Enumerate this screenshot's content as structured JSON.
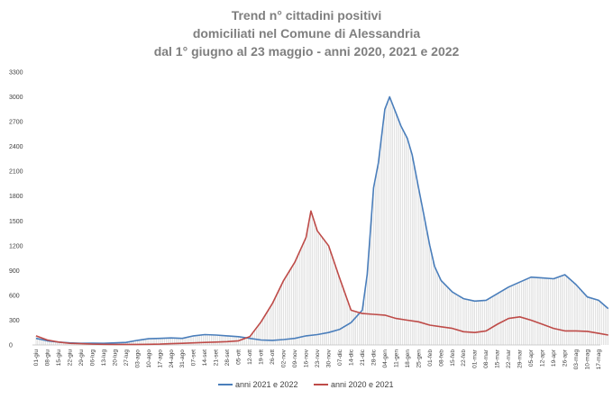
{
  "title_lines": [
    "Trend n° cittadini positivi",
    "domiciliati nel Comune di Alessandria",
    "dal 1° giugno al 23 maggio - anni 2020, 2021 e 2022"
  ],
  "colors": {
    "series_2021_2022": "#4a7ebb",
    "series_2020_2021": "#be4b48",
    "title": "#7f7f7f",
    "axis_text": "#404040",
    "drop_lines": "#bfbfbf"
  },
  "chart_data": {
    "type": "line",
    "title": "Trend n° cittadini positivi domiciliati nel Comune di Alessandria dal 1° giugno al 23 maggio - anni 2020, 2021 e 2022",
    "xlabel": "",
    "ylabel": "",
    "ylim": [
      0,
      3300
    ],
    "y_ticks": [
      0,
      300,
      600,
      900,
      1200,
      1500,
      1800,
      2100,
      2400,
      2700,
      3000,
      3300
    ],
    "x_tick_labels": [
      "01-giu",
      "08-giu",
      "15-giu",
      "22-giu",
      "29-giu",
      "06-lug",
      "13-lug",
      "20-lug",
      "27-lug",
      "03-ago",
      "10-ago",
      "17-ago",
      "24-ago",
      "31-ago",
      "07-set",
      "14-set",
      "21-set",
      "28-set",
      "05-ott",
      "12-ott",
      "19-ott",
      "26-ott",
      "02-nov",
      "09-nov",
      "16-nov",
      "23-nov",
      "30-nov",
      "07-dic",
      "14-dic",
      "21-dic",
      "28-dic",
      "04-gen",
      "11-gen",
      "18-gen",
      "25-gen",
      "01-feb",
      "08-feb",
      "15-feb",
      "22-feb",
      "01-mar",
      "08-mar",
      "15-mar",
      "22-mar",
      "29-mar",
      "05-apr",
      "12-apr",
      "19-apr",
      "26-apr",
      "03-mag",
      "10-mag",
      "17-mag"
    ],
    "grid": false,
    "legend_position": "bottom",
    "series": [
      {
        "name": "anni 2021 e 2022",
        "color": "#4a7ebb",
        "points": [
          [
            "01-giu",
            80
          ],
          [
            "08-giu",
            50
          ],
          [
            "15-giu",
            35
          ],
          [
            "22-giu",
            25
          ],
          [
            "29-giu",
            20
          ],
          [
            "06-lug",
            22
          ],
          [
            "13-lug",
            20
          ],
          [
            "20-lug",
            25
          ],
          [
            "27-lug",
            30
          ],
          [
            "03-ago",
            55
          ],
          [
            "10-ago",
            75
          ],
          [
            "17-ago",
            80
          ],
          [
            "24-ago",
            85
          ],
          [
            "31-ago",
            80
          ],
          [
            "07-set",
            110
          ],
          [
            "14-set",
            125
          ],
          [
            "21-set",
            120
          ],
          [
            "28-set",
            110
          ],
          [
            "05-ott",
            100
          ],
          [
            "12-ott",
            80
          ],
          [
            "19-ott",
            60
          ],
          [
            "26-ott",
            55
          ],
          [
            "02-nov",
            65
          ],
          [
            "09-nov",
            80
          ],
          [
            "16-nov",
            110
          ],
          [
            "23-nov",
            125
          ],
          [
            "30-nov",
            150
          ],
          [
            "07-dic",
            190
          ],
          [
            "14-dic",
            270
          ],
          [
            "21-dic",
            420
          ],
          [
            "24-dic",
            850
          ],
          [
            "28-dic",
            1900
          ],
          [
            "31-dic",
            2200
          ],
          [
            "04-gen",
            2850
          ],
          [
            "07-gen",
            3000
          ],
          [
            "11-gen",
            2800
          ],
          [
            "14-gen",
            2650
          ],
          [
            "18-gen",
            2500
          ],
          [
            "21-gen",
            2300
          ],
          [
            "25-gen",
            1900
          ],
          [
            "28-gen",
            1600
          ],
          [
            "01-feb",
            1200
          ],
          [
            "04-feb",
            950
          ],
          [
            "08-feb",
            780
          ],
          [
            "15-feb",
            640
          ],
          [
            "22-feb",
            560
          ],
          [
            "01-mar",
            530
          ],
          [
            "08-mar",
            540
          ],
          [
            "15-mar",
            620
          ],
          [
            "22-mar",
            700
          ],
          [
            "29-mar",
            760
          ],
          [
            "05-apr",
            820
          ],
          [
            "12-apr",
            810
          ],
          [
            "19-apr",
            800
          ],
          [
            "26-apr",
            850
          ],
          [
            "03-mag",
            730
          ],
          [
            "10-mag",
            580
          ],
          [
            "17-mag",
            540
          ],
          [
            "23-mag",
            440
          ]
        ]
      },
      {
        "name": "anni 2020 e 2021",
        "color": "#be4b48",
        "points": [
          [
            "01-giu",
            110
          ],
          [
            "08-giu",
            60
          ],
          [
            "15-giu",
            35
          ],
          [
            "22-giu",
            20
          ],
          [
            "29-giu",
            15
          ],
          [
            "06-lug",
            10
          ],
          [
            "13-lug",
            8
          ],
          [
            "20-lug",
            6
          ],
          [
            "27-lug",
            6
          ],
          [
            "03-ago",
            7
          ],
          [
            "10-ago",
            8
          ],
          [
            "17-ago",
            10
          ],
          [
            "24-ago",
            15
          ],
          [
            "31-ago",
            20
          ],
          [
            "07-set",
            25
          ],
          [
            "14-set",
            30
          ],
          [
            "21-set",
            35
          ],
          [
            "28-set",
            40
          ],
          [
            "05-ott",
            50
          ],
          [
            "12-ott",
            100
          ],
          [
            "19-ott",
            280
          ],
          [
            "26-ott",
            500
          ],
          [
            "02-nov",
            780
          ],
          [
            "09-nov",
            1000
          ],
          [
            "16-nov",
            1300
          ],
          [
            "19-nov",
            1620
          ],
          [
            "23-nov",
            1380
          ],
          [
            "30-nov",
            1200
          ],
          [
            "07-dic",
            800
          ],
          [
            "14-dic",
            420
          ],
          [
            "21-dic",
            380
          ],
          [
            "28-dic",
            370
          ],
          [
            "04-gen",
            360
          ],
          [
            "11-gen",
            320
          ],
          [
            "18-gen",
            300
          ],
          [
            "25-gen",
            280
          ],
          [
            "01-feb",
            240
          ],
          [
            "08-feb",
            220
          ],
          [
            "15-feb",
            200
          ],
          [
            "22-feb",
            160
          ],
          [
            "01-mar",
            150
          ],
          [
            "08-mar",
            170
          ],
          [
            "15-mar",
            250
          ],
          [
            "22-mar",
            320
          ],
          [
            "29-mar",
            340
          ],
          [
            "05-apr",
            300
          ],
          [
            "12-apr",
            250
          ],
          [
            "19-apr",
            200
          ],
          [
            "26-apr",
            170
          ],
          [
            "03-mag",
            170
          ],
          [
            "10-mag",
            165
          ],
          [
            "17-mag",
            140
          ],
          [
            "23-mag",
            120
          ]
        ]
      }
    ]
  }
}
